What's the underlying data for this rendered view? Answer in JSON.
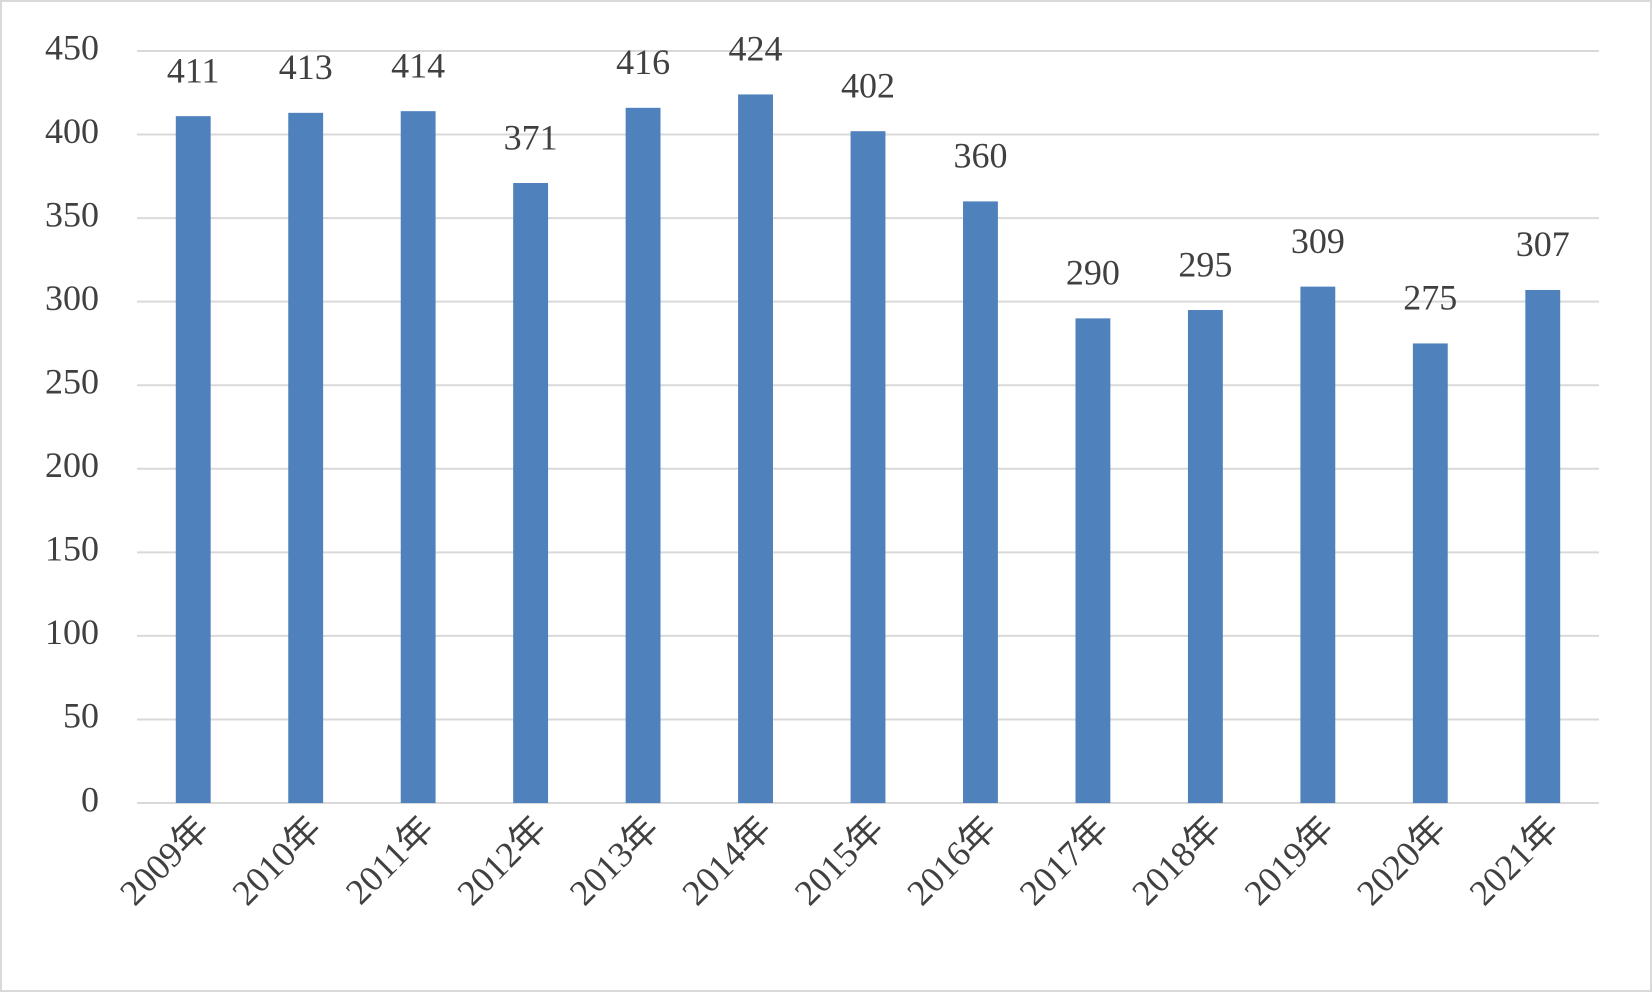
{
  "chart_data": {
    "type": "bar",
    "categories": [
      "2009年",
      "2010年",
      "2011年",
      "2012年",
      "2013年",
      "2014年",
      "2015年",
      "2016年",
      "2017年",
      "2018年",
      "2019年",
      "2020年",
      "2021年"
    ],
    "values": [
      411,
      413,
      414,
      371,
      416,
      424,
      402,
      360,
      290,
      295,
      309,
      275,
      307
    ],
    "color": "#4f81bd",
    "ylim": [
      0,
      450
    ],
    "yticks": [
      0,
      50,
      100,
      150,
      200,
      250,
      300,
      350,
      400,
      450
    ],
    "grid": true,
    "data_labels": true
  }
}
